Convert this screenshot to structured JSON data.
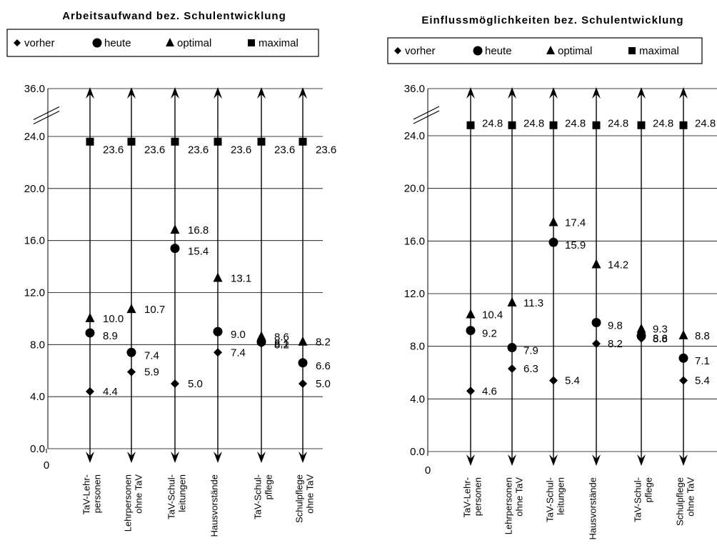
{
  "chart_data": [
    {
      "type": "scatter",
      "title": "Arbeitsaufwand bez. Schulentwicklung",
      "legend": [
        "vorher",
        "heute",
        "optimal",
        "maximal"
      ],
      "legend_position": "top",
      "y_ticks": [
        "0.0",
        "4.0",
        "8.0",
        "12.0",
        "16.0",
        "20.0",
        "24.0",
        "36.0"
      ],
      "x_origin_label": "0",
      "categories": [
        [
          "TaV-Lehr-",
          "personen"
        ],
        [
          "Lehrpersonen",
          "ohne TaV"
        ],
        [
          "TaV-Schul-",
          "leitungen"
        ],
        [
          "Hausvorstände",
          ""
        ],
        [
          "TaV-Schul-",
          "pflege"
        ],
        [
          "Schulpflege",
          "ohne TaV"
        ]
      ],
      "series": [
        {
          "name": "vorher",
          "values": [
            4.4,
            5.9,
            5.0,
            7.4,
            8.1,
            5.0
          ]
        },
        {
          "name": "heute",
          "values": [
            8.9,
            7.4,
            15.4,
            9.0,
            8.2,
            6.6
          ]
        },
        {
          "name": "optimal",
          "values": [
            10.0,
            10.7,
            16.8,
            13.1,
            8.6,
            8.2
          ]
        },
        {
          "name": "maximal",
          "values": [
            23.6,
            23.6,
            23.6,
            23.6,
            23.6,
            23.6
          ]
        }
      ],
      "grid": true,
      "axis_break": "between 24.0 and 36.0"
    },
    {
      "type": "scatter",
      "title": "Einflussmöglichkeiten bez. Schulentwicklung",
      "legend": [
        "vorher",
        "heute",
        "optimal",
        "maximal"
      ],
      "legend_position": "top",
      "y_ticks": [
        "0.0",
        "4.0",
        "8.0",
        "12.0",
        "16.0",
        "20.0",
        "24.0",
        "36.0"
      ],
      "x_origin_label": "0",
      "categories": [
        [
          "TaV-Lehr-",
          "personen"
        ],
        [
          "Lehrpersonen",
          "ohne TaV"
        ],
        [
          "TaV-Schul-",
          "leitungen"
        ],
        [
          "Hausvorstände",
          ""
        ],
        [
          "TaV-Schul-",
          "pflege"
        ],
        [
          "Schulpflege",
          "ohne TaV"
        ]
      ],
      "series": [
        {
          "name": "vorher",
          "values": [
            4.6,
            6.3,
            5.4,
            8.2,
            8.6,
            5.4
          ]
        },
        {
          "name": "heute",
          "values": [
            9.2,
            7.9,
            15.9,
            9.8,
            8.8,
            7.1
          ]
        },
        {
          "name": "optimal",
          "values": [
            10.4,
            11.3,
            17.4,
            14.2,
            9.3,
            8.8
          ]
        },
        {
          "name": "maximal",
          "values": [
            24.8,
            24.8,
            24.8,
            24.8,
            24.8,
            24.8
          ]
        }
      ],
      "grid": true,
      "axis_break": "between 24.0 and 36.0"
    }
  ]
}
